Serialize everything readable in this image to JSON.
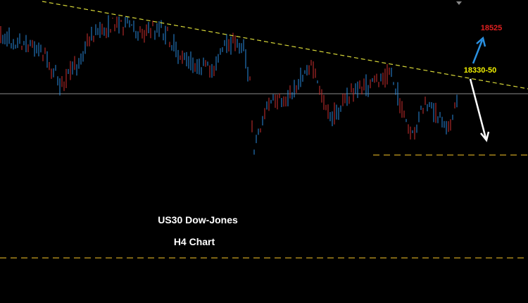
{
  "annotations": {
    "target_high": "18525",
    "resistance": "18330-50",
    "instrument": "US30 Dow-Jones",
    "timeframe": "H4 Chart"
  }
}
